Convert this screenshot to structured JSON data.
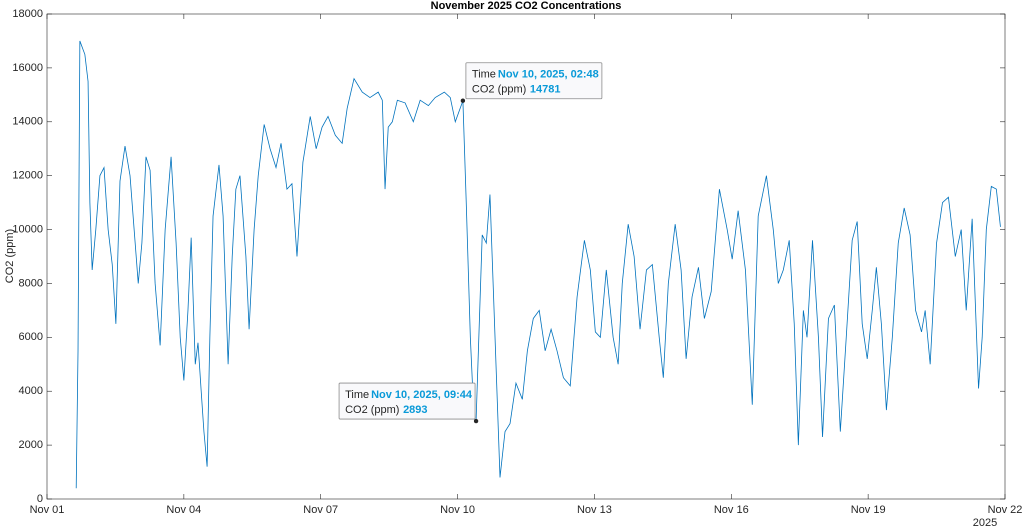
{
  "chart_data": {
    "type": "line",
    "title": "November 2025 CO2 Concentrations",
    "ylabel": "CO2 (ppm)",
    "x_secondary_label": "2025",
    "color": "#0072bd",
    "xlim": [
      1,
      22
    ],
    "xticks": [
      {
        "value": 1,
        "label": "Nov 01"
      },
      {
        "value": 4,
        "label": "Nov 04"
      },
      {
        "value": 7,
        "label": "Nov 07"
      },
      {
        "value": 10,
        "label": "Nov 10"
      },
      {
        "value": 13,
        "label": "Nov 13"
      },
      {
        "value": 16,
        "label": "Nov 16"
      },
      {
        "value": 19,
        "label": "Nov 19"
      },
      {
        "value": 22,
        "label": "Nov 22"
      }
    ],
    "ylim": [
      0,
      18000
    ],
    "yticks": [
      0,
      2000,
      4000,
      6000,
      8000,
      10000,
      12000,
      14000,
      16000,
      18000
    ],
    "x": [
      1.64,
      1.68,
      1.72,
      1.83,
      1.9,
      1.94,
      1.99,
      2.07,
      2.16,
      2.25,
      2.34,
      2.43,
      2.51,
      2.6,
      2.71,
      2.82,
      2.91,
      3.0,
      3.08,
      3.17,
      3.26,
      3.37,
      3.48,
      3.59,
      3.72,
      3.83,
      3.92,
      4.0,
      4.09,
      4.16,
      4.25,
      4.31,
      4.38,
      4.44,
      4.51,
      4.57,
      4.64,
      4.77,
      4.86,
      4.97,
      5.06,
      5.14,
      5.23,
      5.36,
      5.43,
      5.54,
      5.63,
      5.76,
      5.89,
      6.02,
      6.13,
      6.26,
      6.37,
      6.48,
      6.61,
      6.77,
      6.9,
      7.03,
      7.16,
      7.32,
      7.47,
      7.58,
      7.73,
      7.91,
      8.08,
      8.26,
      8.35,
      8.41,
      8.48,
      8.57,
      8.68,
      8.85,
      9.03,
      9.18,
      9.36,
      9.51,
      9.71,
      9.84,
      9.95,
      10.1167,
      10.19,
      10.28,
      10.36,
      10.4056,
      10.54,
      10.63,
      10.71,
      10.8,
      10.93,
      11.04,
      11.15,
      11.28,
      11.42,
      11.53,
      11.66,
      11.79,
      11.92,
      12.05,
      12.18,
      12.32,
      12.47,
      12.62,
      12.78,
      12.91,
      13.02,
      13.13,
      13.26,
      13.41,
      13.52,
      13.61,
      13.74,
      13.87,
      14.0,
      14.14,
      14.27,
      14.42,
      14.51,
      14.62,
      14.77,
      14.9,
      15.01,
      15.14,
      15.28,
      15.41,
      15.56,
      15.74,
      15.91,
      16.02,
      16.15,
      16.31,
      16.46,
      16.59,
      16.77,
      16.92,
      17.03,
      17.14,
      17.27,
      17.38,
      17.47,
      17.58,
      17.66,
      17.78,
      17.91,
      18.0,
      18.13,
      18.26,
      18.39,
      18.52,
      18.65,
      18.76,
      18.87,
      18.98,
      19.09,
      19.18,
      19.29,
      19.4,
      19.53,
      19.66,
      19.79,
      19.92,
      20.04,
      20.17,
      20.25,
      20.36,
      20.5,
      20.63,
      20.76,
      20.91,
      21.04,
      21.15,
      21.28,
      21.42,
      21.5,
      21.59,
      21.7,
      21.81,
      21.9
    ],
    "values": [
      400,
      5500,
      17000,
      16500,
      15500,
      11000,
      8500,
      10000,
      12000,
      12300,
      10000,
      8700,
      6500,
      11800,
      13100,
      12000,
      10000,
      8000,
      9500,
      12700,
      12200,
      8000,
      5700,
      10000,
      12700,
      9500,
      6000,
      4400,
      7000,
      9700,
      5000,
      5800,
      4000,
      2500,
      1200,
      6000,
      10500,
      12400,
      10500,
      5000,
      9000,
      11500,
      12000,
      9000,
      6300,
      10000,
      12000,
      13900,
      13000,
      12300,
      13200,
      11500,
      11700,
      9000,
      12500,
      14200,
      13000,
      13800,
      14200,
      13500,
      13200,
      14500,
      15600,
      15100,
      14900,
      15100,
      14800,
      11500,
      13800,
      14000,
      14800,
      14700,
      14000,
      14800,
      14600,
      14900,
      15100,
      14900,
      14000,
      14781,
      11000,
      6000,
      3000,
      2893,
      9800,
      9500,
      11300,
      7000,
      800,
      2500,
      2800,
      4300,
      3700,
      5500,
      6700,
      7000,
      5500,
      6300,
      5500,
      4500,
      4200,
      7500,
      9600,
      8500,
      6200,
      6000,
      8500,
      6000,
      5000,
      8000,
      10200,
      9000,
      6300,
      8500,
      8700,
      6000,
      4500,
      8000,
      10200,
      8500,
      5200,
      7500,
      8600,
      6700,
      7700,
      11500,
      10000,
      8900,
      10700,
      8500,
      3500,
      10500,
      12000,
      10000,
      8000,
      8500,
      9600,
      6500,
      2000,
      7000,
      6000,
      9600,
      6000,
      2300,
      6700,
      7200,
      2500,
      6000,
      9600,
      10300,
      6500,
      5200,
      7000,
      8600,
      6500,
      3300,
      6000,
      9500,
      10800,
      9800,
      7000,
      6200,
      7000,
      5000,
      9500,
      11000,
      11200,
      9000,
      10000,
      7000,
      10400,
      4100,
      6000,
      10000,
      11600,
      11500,
      10100
    ],
    "annotations": [
      {
        "x": 10.1167,
        "y": 14781,
        "time_label": "Time",
        "time": "Nov 10, 2025, 02:48",
        "value_label": "CO2 (ppm)"
      },
      {
        "x": 10.4056,
        "y": 2893,
        "time_label": "Time",
        "time": "Nov 10, 2025, 09:44",
        "value_label": "CO2 (ppm)"
      }
    ]
  }
}
